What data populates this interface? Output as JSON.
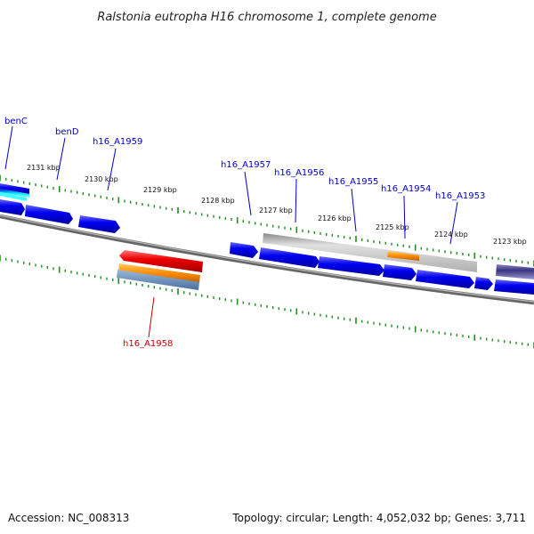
{
  "title": "Ralstonia eutropha H16 chromosome 1, complete genome",
  "footer": {
    "accession": "Accession: NC_008313",
    "summary": "Topology: circular; Length: 4,052,032 bp; Genes: 3,711"
  },
  "kbp_labels": [
    "2131 kbp",
    "2130 kbp",
    "2129 kbp",
    "2128 kbp",
    "2127 kbp",
    "2126 kbp",
    "2125 kbp",
    "2124 kbp",
    "2123 kbp"
  ],
  "gene_labels": [
    {
      "text": "benC",
      "color": "#0000cc"
    },
    {
      "text": "benD",
      "color": "#0000cc"
    },
    {
      "text": "h16_A1959",
      "color": "#0000cc"
    },
    {
      "text": "h16_A1957",
      "color": "#0000cc"
    },
    {
      "text": "h16_A1956",
      "color": "#0000cc"
    },
    {
      "text": "h16_A1955",
      "color": "#0000cc"
    },
    {
      "text": "h16_A1954",
      "color": "#0000cc"
    },
    {
      "text": "h16_A1953",
      "color": "#0000cc"
    },
    {
      "text": "h16_A1958",
      "color": "#cc0000"
    }
  ],
  "colors": {
    "forward_cds": "#0000ee",
    "reverse_cds": "#ee0000",
    "rna": "#ff8c00",
    "backbone": "#888888",
    "ticks": "#228b22",
    "label_forward": "#0000cc",
    "label_reverse": "#cc0000"
  }
}
